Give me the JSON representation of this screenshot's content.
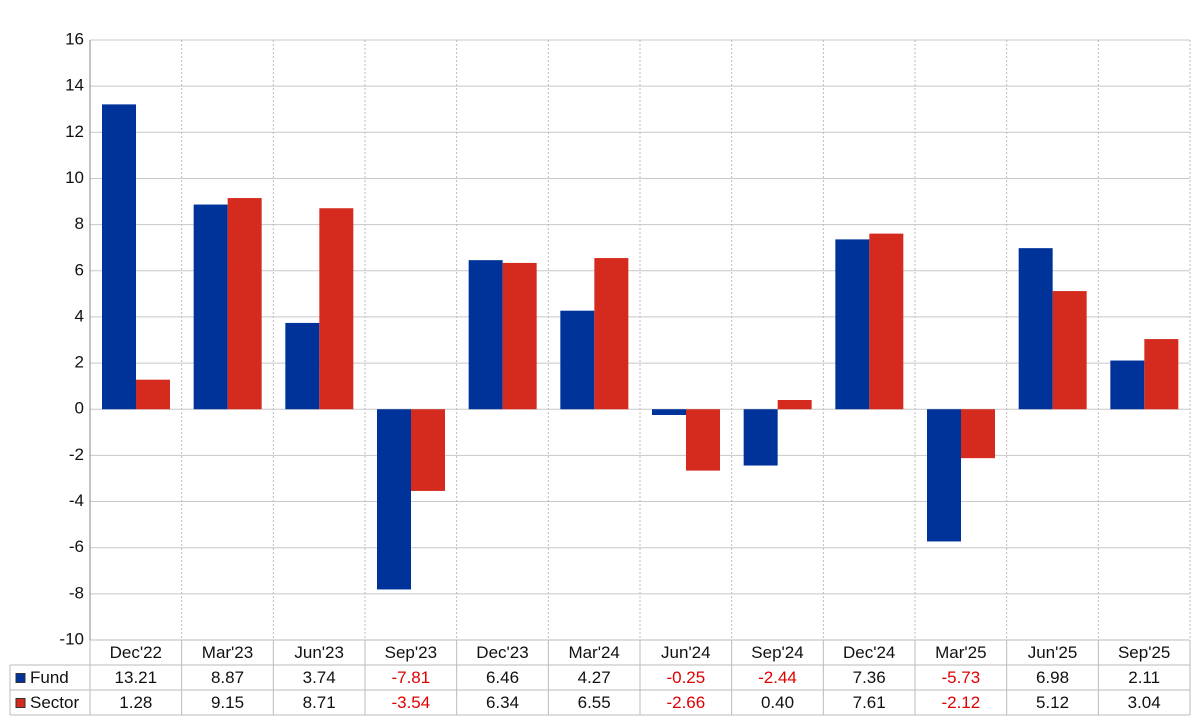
{
  "chart_data": {
    "type": "bar",
    "categories": [
      "Dec'22",
      "Mar'23",
      "Jun'23",
      "Sep'23",
      "Dec'23",
      "Mar'24",
      "Jun'24",
      "Sep'24",
      "Dec'24",
      "Mar'25",
      "Jun'25",
      "Sep'25"
    ],
    "series": [
      {
        "name": "Fund",
        "color": "#003399",
        "values": [
          13.21,
          8.87,
          3.74,
          -7.81,
          6.46,
          4.27,
          -0.25,
          -2.44,
          7.36,
          -5.73,
          6.98,
          2.11
        ],
        "value_labels": [
          "13.21",
          "8.87",
          "3.74",
          "-7.81",
          "6.46",
          "4.27",
          "-0.25",
          "-2.44",
          "7.36",
          "-5.73",
          "6.98",
          "2.11"
        ]
      },
      {
        "name": "Sector",
        "color": "#d52b1e",
        "values": [
          1.28,
          9.15,
          8.71,
          -3.54,
          6.34,
          6.55,
          -2.66,
          0.4,
          7.61,
          -2.12,
          5.12,
          3.04
        ],
        "value_labels": [
          "1.28",
          "9.15",
          "8.71",
          "-3.54",
          "6.34",
          "6.55",
          "-2.66",
          "0.40",
          "7.61",
          "-2.12",
          "5.12",
          "3.04"
        ]
      }
    ],
    "ylim": [
      -10,
      16
    ],
    "yticks": [
      -10,
      -8,
      -6,
      -4,
      -2,
      0,
      2,
      4,
      6,
      8,
      10,
      12,
      14,
      16
    ],
    "grid": true,
    "negative_label_color": "#e00000"
  }
}
